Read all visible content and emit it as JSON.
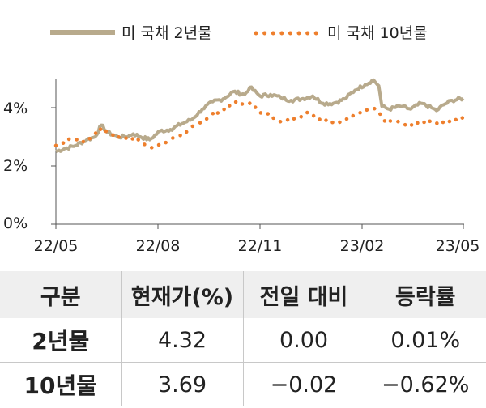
{
  "chart_data": {
    "type": "line",
    "title": "",
    "xlabel": "",
    "ylabel": "",
    "x_ticks": [
      "22/05",
      "22/08",
      "22/11",
      "23/02",
      "23/05"
    ],
    "y_ticks": [
      "0%",
      "2%",
      "4%"
    ],
    "ylim": [
      0,
      5
    ],
    "grid": false,
    "legend_position": "top",
    "series": [
      {
        "name": "미 국채 2년물",
        "style": "solid",
        "color": "#b8aa8c",
        "points": [
          [
            "2022-05-01",
            2.5
          ],
          [
            "2022-05-10",
            2.6
          ],
          [
            "2022-05-20",
            2.7
          ],
          [
            "2022-05-31",
            2.9
          ],
          [
            "2022-06-08",
            3.0
          ],
          [
            "2022-06-14",
            3.4
          ],
          [
            "2022-06-20",
            3.15
          ],
          [
            "2022-06-30",
            3.0
          ],
          [
            "2022-07-08",
            3.0
          ],
          [
            "2022-07-15",
            3.1
          ],
          [
            "2022-07-22",
            3.0
          ],
          [
            "2022-07-31",
            2.9
          ],
          [
            "2022-08-10",
            3.2
          ],
          [
            "2022-08-20",
            3.25
          ],
          [
            "2022-08-31",
            3.45
          ],
          [
            "2022-09-10",
            3.6
          ],
          [
            "2022-09-20",
            3.95
          ],
          [
            "2022-09-30",
            4.2
          ],
          [
            "2022-10-10",
            4.3
          ],
          [
            "2022-10-20",
            4.55
          ],
          [
            "2022-10-31",
            4.45
          ],
          [
            "2022-11-05",
            4.7
          ],
          [
            "2022-11-15",
            4.4
          ],
          [
            "2022-11-25",
            4.45
          ],
          [
            "2022-12-05",
            4.35
          ],
          [
            "2022-12-15",
            4.25
          ],
          [
            "2022-12-25",
            4.3
          ],
          [
            "2023-01-05",
            4.4
          ],
          [
            "2023-01-15",
            4.15
          ],
          [
            "2023-01-25",
            4.15
          ],
          [
            "2023-02-05",
            4.3
          ],
          [
            "2023-02-15",
            4.6
          ],
          [
            "2023-02-25",
            4.8
          ],
          [
            "2023-03-05",
            4.95
          ],
          [
            "2023-03-10",
            4.75
          ],
          [
            "2023-03-13",
            4.05
          ],
          [
            "2023-03-20",
            3.95
          ],
          [
            "2023-03-31",
            4.05
          ],
          [
            "2023-04-10",
            3.95
          ],
          [
            "2023-04-20",
            4.15
          ],
          [
            "2023-04-30",
            4.0
          ],
          [
            "2023-05-05",
            3.9
          ],
          [
            "2023-05-12",
            4.1
          ],
          [
            "2023-05-20",
            4.25
          ],
          [
            "2023-05-31",
            4.32
          ]
        ]
      },
      {
        "name": "미 국채 10년물",
        "style": "dotted",
        "color": "#ee7f2d",
        "points": [
          [
            "2022-05-01",
            2.7
          ],
          [
            "2022-05-15",
            2.9
          ],
          [
            "2022-05-31",
            2.85
          ],
          [
            "2022-06-14",
            3.3
          ],
          [
            "2022-06-30",
            3.0
          ],
          [
            "2022-07-15",
            2.95
          ],
          [
            "2022-07-31",
            2.65
          ],
          [
            "2022-08-15",
            2.8
          ],
          [
            "2022-08-31",
            3.1
          ],
          [
            "2022-09-15",
            3.4
          ],
          [
            "2022-09-30",
            3.8
          ],
          [
            "2022-10-15",
            4.0
          ],
          [
            "2022-10-24",
            4.2
          ],
          [
            "2022-11-05",
            4.15
          ],
          [
            "2022-11-15",
            3.85
          ],
          [
            "2022-11-30",
            3.65
          ],
          [
            "2022-12-07",
            3.5
          ],
          [
            "2022-12-20",
            3.65
          ],
          [
            "2022-12-31",
            3.85
          ],
          [
            "2023-01-15",
            3.55
          ],
          [
            "2023-01-31",
            3.5
          ],
          [
            "2023-02-15",
            3.75
          ],
          [
            "2023-03-01",
            3.95
          ],
          [
            "2023-03-08",
            3.95
          ],
          [
            "2023-03-15",
            3.55
          ],
          [
            "2023-03-31",
            3.5
          ],
          [
            "2023-04-06",
            3.35
          ],
          [
            "2023-04-20",
            3.5
          ],
          [
            "2023-05-01",
            3.5
          ],
          [
            "2023-05-15",
            3.5
          ],
          [
            "2023-05-31",
            3.69
          ]
        ]
      }
    ]
  },
  "table": {
    "headers": [
      "구분",
      "현재가(%)",
      "전일 대비",
      "등락률"
    ],
    "rows": [
      {
        "name": "2년물",
        "price": "4.32",
        "change": "0.00",
        "rate": "0.01%"
      },
      {
        "name": "10년물",
        "price": "3.69",
        "change": "−0.02",
        "rate": "−0.62%"
      }
    ]
  }
}
